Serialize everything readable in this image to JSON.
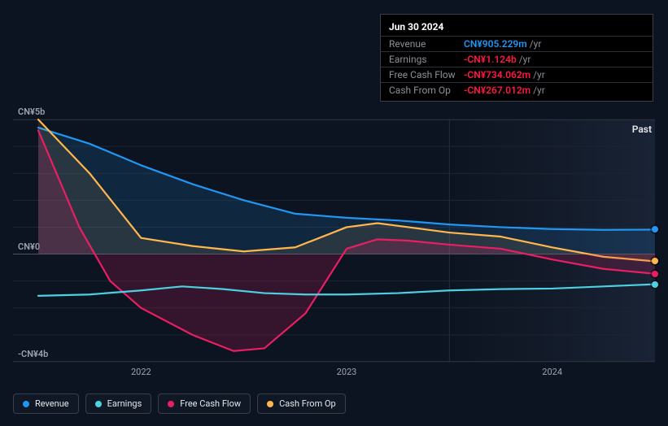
{
  "tooltip": {
    "title": "Jun 30 2024",
    "rows": [
      {
        "label": "Revenue",
        "value": "CN¥905.229m",
        "unit": "/yr",
        "color": "#2196f3"
      },
      {
        "label": "Earnings",
        "value": "-CN¥1.124b",
        "unit": "/yr",
        "color": "#ff1744"
      },
      {
        "label": "Free Cash Flow",
        "value": "-CN¥734.062m",
        "unit": "/yr",
        "color": "#ff1744"
      },
      {
        "label": "Cash From Op",
        "value": "-CN¥267.012m",
        "unit": "/yr",
        "color": "#ff1744"
      }
    ]
  },
  "chart": {
    "type": "line",
    "ylim": [
      -4,
      5
    ],
    "y_axis_labels": [
      {
        "text": "CN¥5b",
        "y": 5
      },
      {
        "text": "CN¥0",
        "y": 0
      },
      {
        "text": "-CN¥4b",
        "y": -4
      }
    ],
    "xlim": [
      2021.5,
      2024.5
    ],
    "x_axis_labels": [
      {
        "text": "2022",
        "x": 2022
      },
      {
        "text": "2023",
        "x": 2023
      },
      {
        "text": "2024",
        "x": 2024
      }
    ],
    "past_label": "Past",
    "highlight_from_x": 2023.5,
    "background_color": "#0d1421",
    "grid_color": "#2a2f3a",
    "series": [
      {
        "name": "Revenue",
        "color": "#2196f3",
        "fill_opacity": 0.15,
        "z": 1,
        "points": [
          {
            "x": 2021.5,
            "y": 4.7
          },
          {
            "x": 2021.75,
            "y": 4.1
          },
          {
            "x": 2022.0,
            "y": 3.3
          },
          {
            "x": 2022.25,
            "y": 2.6
          },
          {
            "x": 2022.5,
            "y": 2.0
          },
          {
            "x": 2022.75,
            "y": 1.5
          },
          {
            "x": 2023.0,
            "y": 1.35
          },
          {
            "x": 2023.25,
            "y": 1.25
          },
          {
            "x": 2023.5,
            "y": 1.1
          },
          {
            "x": 2023.75,
            "y": 1.0
          },
          {
            "x": 2024.0,
            "y": 0.93
          },
          {
            "x": 2024.25,
            "y": 0.9
          },
          {
            "x": 2024.5,
            "y": 0.91
          }
        ]
      },
      {
        "name": "Cash From Op",
        "color": "#ffb74d",
        "fill_opacity": 0.1,
        "z": 2,
        "points": [
          {
            "x": 2021.5,
            "y": 5.0
          },
          {
            "x": 2021.75,
            "y": 3.0
          },
          {
            "x": 2022.0,
            "y": 0.6
          },
          {
            "x": 2022.25,
            "y": 0.3
          },
          {
            "x": 2022.5,
            "y": 0.1
          },
          {
            "x": 2022.75,
            "y": 0.25
          },
          {
            "x": 2023.0,
            "y": 1.0
          },
          {
            "x": 2023.15,
            "y": 1.15
          },
          {
            "x": 2023.3,
            "y": 1.0
          },
          {
            "x": 2023.5,
            "y": 0.8
          },
          {
            "x": 2023.75,
            "y": 0.65
          },
          {
            "x": 2024.0,
            "y": 0.25
          },
          {
            "x": 2024.25,
            "y": -0.1
          },
          {
            "x": 2024.5,
            "y": -0.27
          }
        ]
      },
      {
        "name": "Free Cash Flow",
        "color": "#e91e63",
        "fill_opacity": 0.18,
        "z": 3,
        "points": [
          {
            "x": 2021.5,
            "y": 4.6
          },
          {
            "x": 2021.7,
            "y": 1.0
          },
          {
            "x": 2021.85,
            "y": -1.0
          },
          {
            "x": 2022.0,
            "y": -2.0
          },
          {
            "x": 2022.25,
            "y": -3.0
          },
          {
            "x": 2022.45,
            "y": -3.6
          },
          {
            "x": 2022.6,
            "y": -3.5
          },
          {
            "x": 2022.8,
            "y": -2.2
          },
          {
            "x": 2023.0,
            "y": 0.2
          },
          {
            "x": 2023.15,
            "y": 0.55
          },
          {
            "x": 2023.3,
            "y": 0.5
          },
          {
            "x": 2023.5,
            "y": 0.35
          },
          {
            "x": 2023.75,
            "y": 0.2
          },
          {
            "x": 2024.0,
            "y": -0.2
          },
          {
            "x": 2024.25,
            "y": -0.55
          },
          {
            "x": 2024.5,
            "y": -0.73
          }
        ]
      },
      {
        "name": "Earnings",
        "color": "#4dd0e1",
        "fill_opacity": 0,
        "z": 4,
        "points": [
          {
            "x": 2021.5,
            "y": -1.55
          },
          {
            "x": 2021.75,
            "y": -1.5
          },
          {
            "x": 2022.0,
            "y": -1.35
          },
          {
            "x": 2022.2,
            "y": -1.2
          },
          {
            "x": 2022.4,
            "y": -1.3
          },
          {
            "x": 2022.6,
            "y": -1.45
          },
          {
            "x": 2022.8,
            "y": -1.5
          },
          {
            "x": 2023.0,
            "y": -1.5
          },
          {
            "x": 2023.25,
            "y": -1.45
          },
          {
            "x": 2023.5,
            "y": -1.35
          },
          {
            "x": 2023.75,
            "y": -1.3
          },
          {
            "x": 2024.0,
            "y": -1.28
          },
          {
            "x": 2024.25,
            "y": -1.2
          },
          {
            "x": 2024.5,
            "y": -1.12
          }
        ]
      }
    ]
  },
  "legend": [
    {
      "label": "Revenue",
      "color": "#2196f3"
    },
    {
      "label": "Earnings",
      "color": "#4dd0e1"
    },
    {
      "label": "Free Cash Flow",
      "color": "#e91e63"
    },
    {
      "label": "Cash From Op",
      "color": "#ffb74d"
    }
  ]
}
